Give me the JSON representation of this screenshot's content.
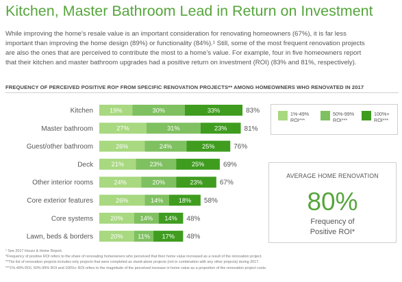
{
  "title": "Kitchen, Master Bathroom Lead in Return on Investment",
  "intro": {
    "line1": "While improving the home’s resale value is an important consideration for renovating homeowners (67%), it is far less",
    "line2": "important than improving the home design (89%) or functionality (84%).¹ Still, some of the most frequent renovation projects",
    "line3": "are also the ones that are perceived to contribute the most to a home’s value. For example, four in five homeowners report",
    "line4": "that their kitchen and master bathroom upgrades had a positive return on investment (ROI) (83% and 81%, respectively)."
  },
  "chart_heading": "FREQUENCY OF PERCEIVED POSITIVE ROI* FROM SPECIFIC RENOVATION PROJECTS** AMONG HOMEOWNERS WHO RENOVATED IN 2017",
  "colors": {
    "light": "#a8d880",
    "medium": "#7fc060",
    "dark": "#3f9c1f",
    "brand": "#56a53c"
  },
  "chart_data": {
    "type": "bar",
    "stacked": true,
    "orientation": "horizontal",
    "categories": [
      "Kitchen",
      "Master bathroom",
      "Guest/other bathroom",
      "Deck",
      "Other interior rooms",
      "Core exterior features",
      "Core systems",
      "Lawn, beds & borders"
    ],
    "series": [
      {
        "name": "1%-49% ROI***",
        "values": [
          19,
          27,
          26,
          21,
          24,
          26,
          20,
          20
        ]
      },
      {
        "name": "50%-99% ROI***",
        "values": [
          30,
          31,
          24,
          23,
          20,
          14,
          14,
          11
        ]
      },
      {
        "name": "100%+ ROI***",
        "values": [
          33,
          23,
          25,
          25,
          23,
          18,
          14,
          17
        ]
      }
    ],
    "value_labels": [
      [
        "19%",
        "30%",
        "33%"
      ],
      [
        "27%",
        "31%",
        "23%"
      ],
      [
        "26%",
        "24%",
        "25%"
      ],
      [
        "21%",
        "23%",
        "25%"
      ],
      [
        "24%",
        "20%",
        "23%"
      ],
      [
        "26%",
        "14%",
        "18%"
      ],
      [
        "20%",
        "14%",
        "14%"
      ],
      [
        "20%",
        "11%",
        "17%"
      ]
    ],
    "totals": [
      83,
      81,
      76,
      69,
      67,
      58,
      48,
      48
    ],
    "total_labels": [
      "83%",
      "81%",
      "76%",
      "69%",
      "67%",
      "58%",
      "48%",
      "48%"
    ],
    "legend_position": "right",
    "grid": false
  },
  "legend": [
    {
      "line1": "1%-49%",
      "line2": "ROI***"
    },
    {
      "line1": "50%-99%",
      "line2": "ROI***"
    },
    {
      "line1": "100%+",
      "line2": "ROI***"
    }
  ],
  "callout": {
    "heading": "AVERAGE HOME RENOVATION",
    "value": "80%",
    "caption_line1": "Frequency of",
    "caption_line2": "Positive ROI*"
  },
  "footnotes": [
    "¹ See 2017 Houzz & Home Report.",
    "*Frequency of positive ROI refers to the share of renovating homeowners who perceived that their home value increased as a result of the renovation project.",
    "**The list of renovation projects includes only projects that were completed as stand-alone projects (not in combination with any other projects) during 2017.",
    "***1%-49% ROI, 50%-99% ROI and 100%+ ROI refers to the magnitude of the perceived increase in home value as a proportion of the renovation project costs."
  ]
}
